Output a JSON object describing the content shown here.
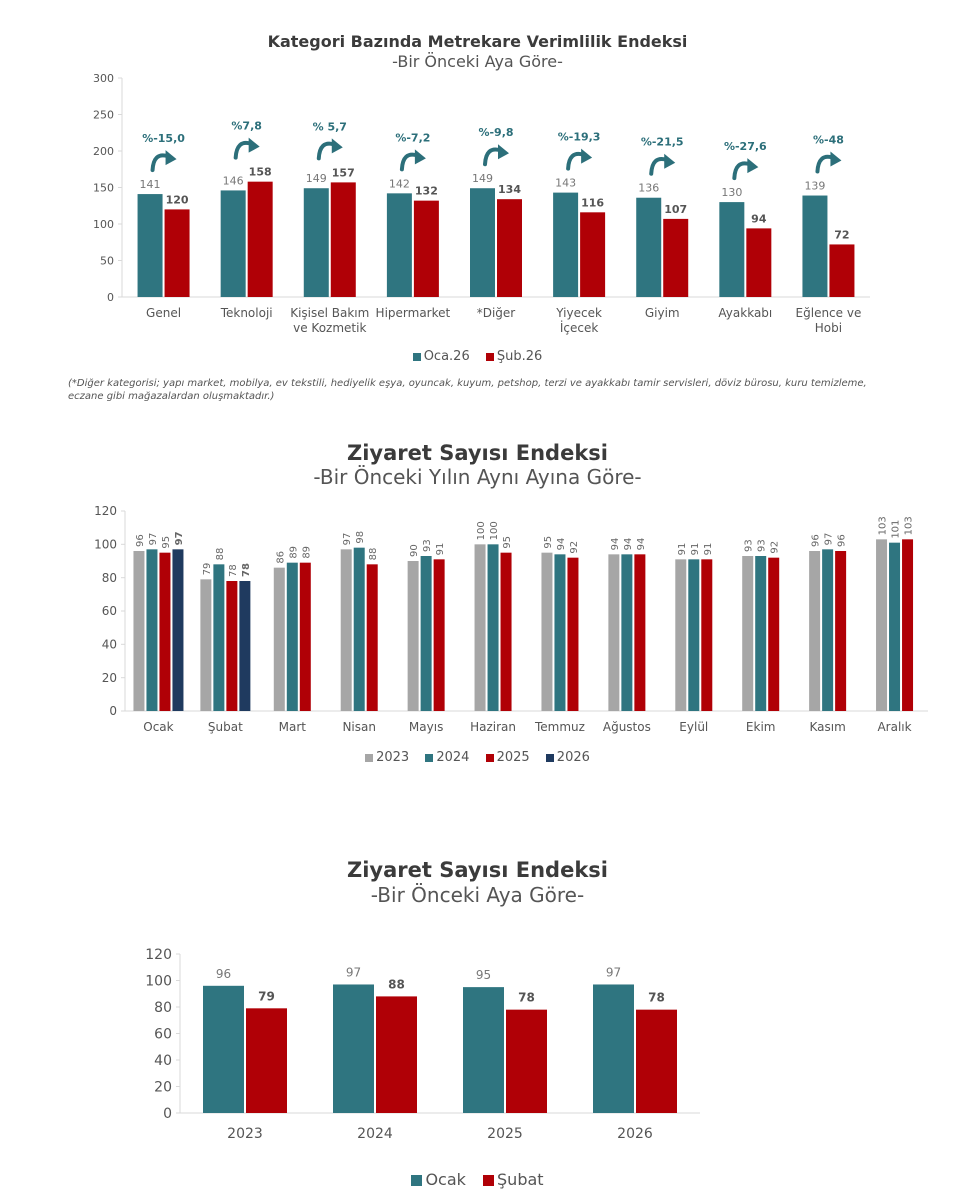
{
  "colors": {
    "teal": "#2f7580",
    "red": "#b00006",
    "gray": "#a6a6a6",
    "navy": "#1f3a5f",
    "arrow": "#2c6f7a",
    "axis": "#d9d9d9"
  },
  "chart_data": [
    {
      "id": "c1",
      "type": "bar",
      "title": "Kategori Bazında Metrekare Verimlilik Endeksi",
      "subtitle": "-Bir Önceki Aya Göre-",
      "ylim": [
        0,
        300
      ],
      "yticks": [
        "0",
        "50",
        "100",
        "150",
        "200",
        "250",
        "300"
      ],
      "categories": [
        [
          "Genel"
        ],
        [
          "Teknoloji"
        ],
        [
          "Kişisel Bakım",
          "ve Kozmetik"
        ],
        [
          "Hipermarket"
        ],
        [
          "*Diğer"
        ],
        [
          "Yiyecek",
          "İçecek"
        ],
        [
          "Giyim"
        ],
        [
          "Ayakkabı"
        ],
        [
          "Eğlence ve",
          "Hobi"
        ]
      ],
      "series": [
        {
          "name": "Oca.26",
          "values": [
            141,
            146,
            149,
            142,
            149,
            143,
            136,
            130,
            139
          ]
        },
        {
          "name": "Şub.26",
          "values": [
            120,
            158,
            157,
            132,
            134,
            116,
            107,
            94,
            72
          ]
        }
      ],
      "changes": [
        "%-15,0",
        "%7,8",
        "% 5,7",
        "%-7,2",
        "%-9,8",
        "%-19,3",
        "%-21,5",
        "%-27,6",
        "%-48"
      ],
      "note": "(*Diğer kategorisi; yapı market, mobilya, ev tekstili, hediyelik eşya, oyuncak, kuyum, petshop, terzi ve ayakkabı tamir servisleri, döviz bürosu, kuru temizleme, eczane gibi mağazalardan oluşmaktadır.)"
    },
    {
      "id": "c2",
      "type": "bar",
      "title": "Ziyaret Sayısı Endeksi",
      "subtitle": "-Bir Önceki Yılın Aynı Ayına Göre-",
      "ylim": [
        0,
        120
      ],
      "yticks": [
        "0",
        "20",
        "40",
        "60",
        "80",
        "100",
        "120"
      ],
      "categories": [
        "Ocak",
        "Şubat",
        "Mart",
        "Nisan",
        "Mayıs",
        "Haziran",
        "Temmuz",
        "Ağustos",
        "Eylül",
        "Ekim",
        "Kasım",
        "Aralık"
      ],
      "series": [
        {
          "name": "2023",
          "values": [
            96,
            79,
            86,
            97,
            90,
            100,
            95,
            94,
            91,
            93,
            96,
            103
          ]
        },
        {
          "name": "2024",
          "values": [
            97,
            88,
            89,
            98,
            93,
            100,
            94,
            94,
            91,
            93,
            97,
            101
          ]
        },
        {
          "name": "2025",
          "values": [
            95,
            78,
            89,
            88,
            91,
            95,
            92,
            94,
            91,
            92,
            96,
            103
          ]
        },
        {
          "name": "2026",
          "values": [
            97,
            78,
            null,
            null,
            null,
            null,
            null,
            null,
            null,
            null,
            null,
            null
          ]
        }
      ]
    },
    {
      "id": "c3",
      "type": "bar",
      "title": "Ziyaret Sayısı Endeksi",
      "subtitle": "-Bir Önceki Aya Göre-",
      "ylim": [
        0,
        120
      ],
      "yticks": [
        "0",
        "20",
        "40",
        "60",
        "80",
        "100",
        "120"
      ],
      "categories": [
        "2023",
        "2024",
        "2025",
        "2026"
      ],
      "series": [
        {
          "name": "Ocak",
          "values": [
            96,
            97,
            95,
            97
          ]
        },
        {
          "name": "Şubat",
          "values": [
            79,
            88,
            78,
            78
          ]
        }
      ]
    }
  ]
}
